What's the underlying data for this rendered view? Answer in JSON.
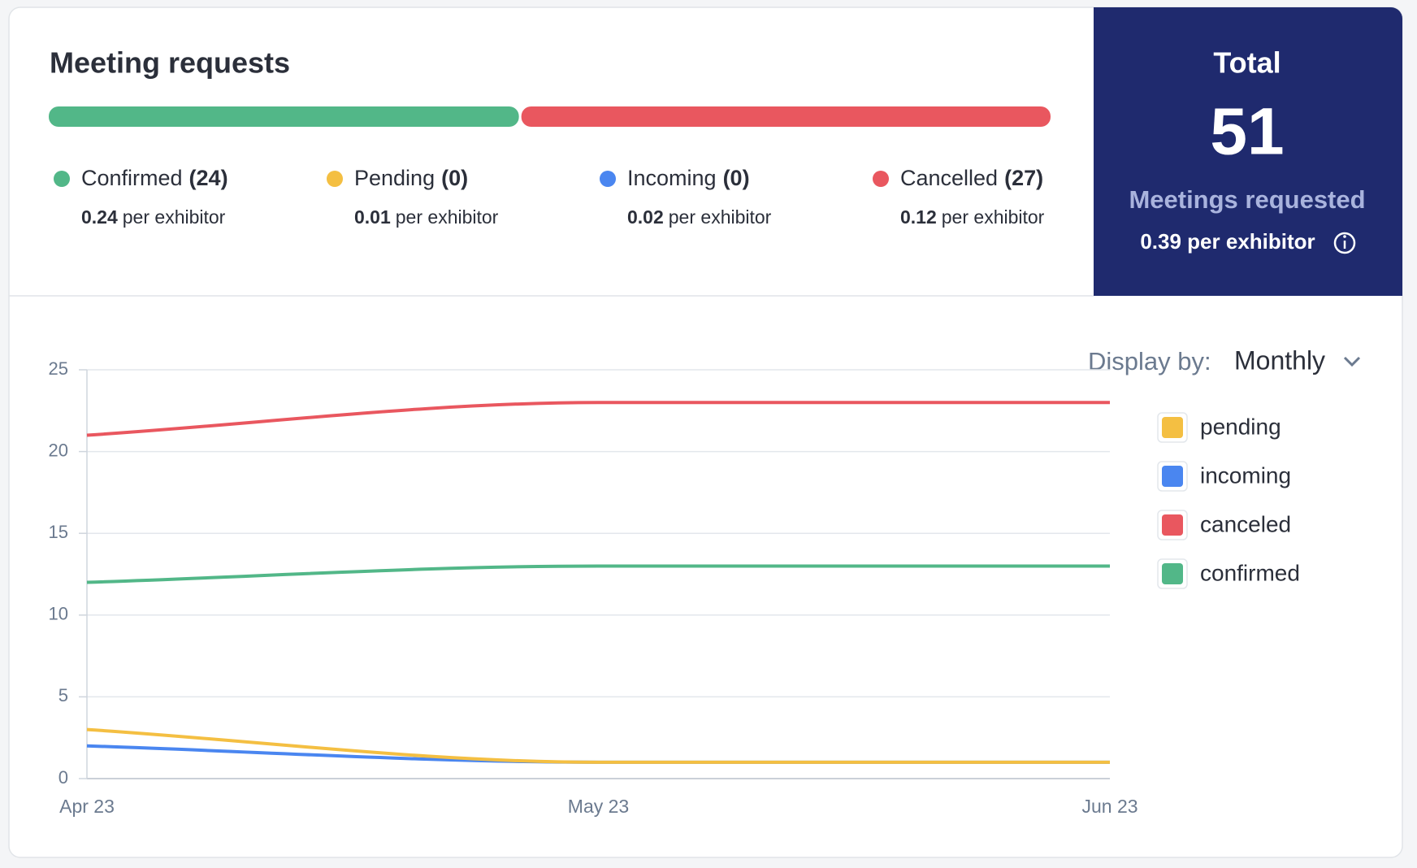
{
  "header": {
    "title": "Meeting requests"
  },
  "stats": {
    "per_text": "per exhibitor",
    "items": [
      {
        "name": "Confirmed",
        "count": 24,
        "count_label": "(24)",
        "per": 0.24,
        "color": "#52b788"
      },
      {
        "name": "Pending",
        "count": 0,
        "count_label": "(0)",
        "per": 0.01,
        "color": "#f4bf42"
      },
      {
        "name": "Incoming",
        "count": 0,
        "count_label": "(0)",
        "per": 0.02,
        "color": "#4a86f0"
      },
      {
        "name": "Cancelled",
        "count": 27,
        "count_label": "(27)",
        "per": 0.12,
        "color": "#e9575f"
      }
    ]
  },
  "total": {
    "title": "Total",
    "value": 51,
    "subtitle": "Meetings requested",
    "per_label": "0.39 per exhibitor"
  },
  "display": {
    "label": "Display by:",
    "value": "Monthly"
  },
  "chart_data": {
    "type": "line",
    "categories": [
      "Apr 23",
      "May 23",
      "Jun 23"
    ],
    "series": [
      {
        "name": "pending",
        "color": "#f4bf42",
        "values": [
          3,
          1,
          1
        ]
      },
      {
        "name": "incoming",
        "color": "#4a86f0",
        "values": [
          2,
          1,
          1
        ]
      },
      {
        "name": "canceled",
        "color": "#e9575f",
        "values": [
          21,
          23,
          23
        ]
      },
      {
        "name": "confirmed",
        "color": "#52b788",
        "values": [
          12,
          13,
          13
        ]
      }
    ],
    "ylim": [
      0,
      25
    ],
    "yticks": [
      0,
      5,
      10,
      15,
      20,
      25
    ],
    "grid": true
  }
}
